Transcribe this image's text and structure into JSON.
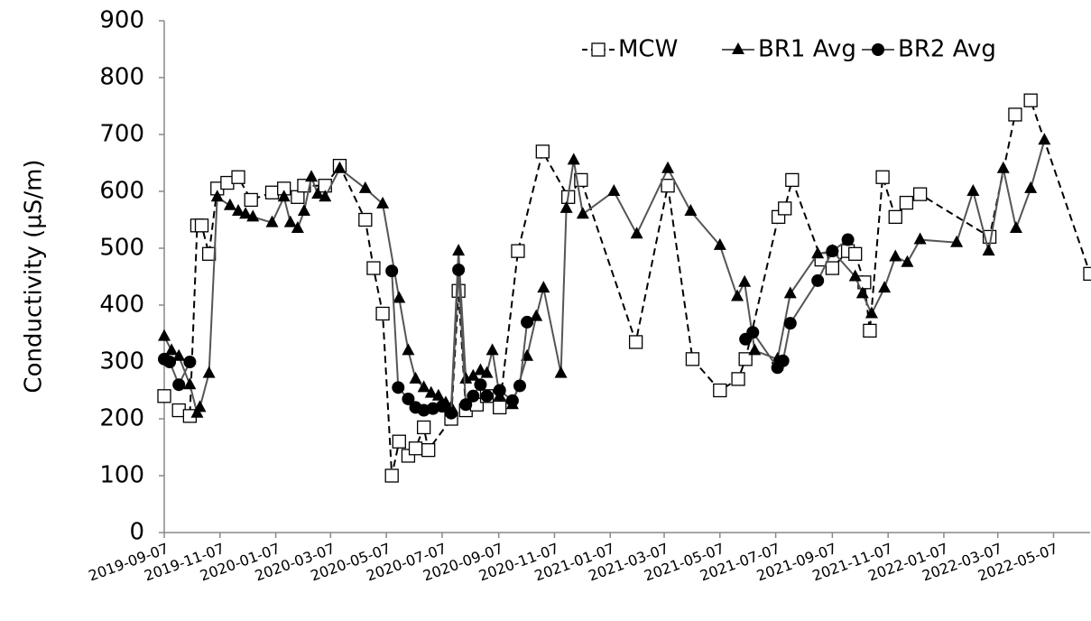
{
  "chart_data": {
    "type": "line",
    "y_label": "Conductivity (µS/m)",
    "ylim": [
      0,
      900
    ],
    "yticks": [
      0,
      100,
      200,
      300,
      400,
      500,
      600,
      700,
      800,
      900
    ],
    "xlim": [
      "2019-09-07",
      "2022-06-16"
    ],
    "xticks": [
      "2019-09-07",
      "2019-11-07",
      "2020-01-07",
      "2020-03-07",
      "2020-05-07",
      "2020-07-07",
      "2020-09-07",
      "2020-11-07",
      "2021-01-07",
      "2021-03-07",
      "2021-05-07",
      "2021-07-07",
      "2021-09-07",
      "2021-11-07",
      "2022-01-07",
      "2022-03-07",
      "2022-05-07"
    ],
    "legend": "top-right",
    "series": [
      {
        "name": "MCW",
        "color": "#000000",
        "marker": "open-square",
        "dashed": true,
        "x": [
          "2019-09-07",
          "2019-09-23",
          "2019-10-05",
          "2019-10-13",
          "2019-10-18",
          "2019-10-26",
          "2019-11-04",
          "2019-11-15",
          "2019-11-27",
          "2019-12-11",
          "2020-01-03",
          "2020-01-16",
          "2020-01-31",
          "2020-02-07",
          "2020-03-01",
          "2020-03-17",
          "2020-04-14",
          "2020-04-23",
          "2020-05-03",
          "2020-05-13",
          "2020-05-21",
          "2020-05-31",
          "2020-06-08",
          "2020-06-17",
          "2020-06-22",
          "2020-07-17",
          "2020-07-25",
          "2020-08-02",
          "2020-08-14",
          "2020-08-25",
          "2020-09-08",
          "2020-09-28",
          "2020-10-25",
          "2020-11-22",
          "2020-12-06",
          "2021-02-04",
          "2021-03-11",
          "2021-04-07",
          "2021-05-07",
          "2021-05-27",
          "2021-06-04",
          "2021-07-10",
          "2021-07-17",
          "2021-07-25",
          "2021-08-26",
          "2021-09-07",
          "2021-09-24",
          "2021-10-02",
          "2021-10-12",
          "2021-10-18",
          "2021-11-01",
          "2021-11-15",
          "2021-11-27",
          "2021-12-12",
          "2022-02-26",
          "2022-03-26",
          "2022-04-12",
          "2022-06-16"
        ],
        "values": [
          240,
          215,
          205,
          540,
          540,
          490,
          605,
          615,
          625,
          585,
          598,
          605,
          590,
          610,
          610,
          645,
          550,
          465,
          385,
          100,
          160,
          135,
          148,
          185,
          145,
          200,
          425,
          215,
          225,
          240,
          220,
          495,
          670,
          590,
          620,
          335,
          610,
          305,
          250,
          270,
          305,
          555,
          570,
          620,
          480,
          465,
          495,
          490,
          440,
          355,
          625,
          555,
          580,
          595,
          520,
          735,
          760,
          455
        ]
      },
      {
        "name": "BR1 Avg",
        "color": "#000000",
        "marker": "triangle",
        "dashed": false,
        "x": [
          "2019-09-07",
          "2019-09-15",
          "2019-09-23",
          "2019-10-05",
          "2019-10-13",
          "2019-10-16",
          "2019-10-26",
          "2019-11-04",
          "2019-11-18",
          "2019-11-27",
          "2019-12-05",
          "2019-12-13",
          "2020-01-03",
          "2020-01-16",
          "2020-01-23",
          "2020-01-31",
          "2020-02-07",
          "2020-02-15",
          "2020-02-22",
          "2020-03-01",
          "2020-03-17",
          "2020-04-14",
          "2020-05-03",
          "2020-05-21",
          "2020-05-31",
          "2020-06-08",
          "2020-06-17",
          "2020-06-25",
          "2020-07-03",
          "2020-07-11",
          "2020-07-17",
          "2020-07-25",
          "2020-08-02",
          "2020-08-10",
          "2020-08-18",
          "2020-08-25",
          "2020-08-31",
          "2020-09-08",
          "2020-09-22",
          "2020-10-08",
          "2020-10-18",
          "2020-10-26",
          "2020-11-14",
          "2020-11-20",
          "2020-11-28",
          "2020-12-08",
          "2021-01-11",
          "2021-02-05",
          "2021-03-11",
          "2021-04-05",
          "2021-05-07",
          "2021-05-26",
          "2021-06-03",
          "2021-06-14",
          "2021-07-09",
          "2021-07-23",
          "2021-08-22",
          "2021-09-07",
          "2021-10-02",
          "2021-10-10",
          "2021-10-20",
          "2021-11-03",
          "2021-11-15",
          "2021-11-28",
          "2021-12-12",
          "2022-01-21",
          "2022-02-08",
          "2022-02-25",
          "2022-03-13",
          "2022-03-27",
          "2022-04-12",
          "2022-04-27"
        ],
        "values": [
          345,
          320,
          310,
          260,
          210,
          220,
          280,
          590,
          575,
          565,
          560,
          555,
          545,
          590,
          545,
          535,
          565,
          625,
          595,
          590,
          640,
          605,
          578,
          412,
          320,
          270,
          255,
          245,
          240,
          228,
          220,
          495,
          270,
          275,
          285,
          280,
          320,
          240,
          225,
          310,
          380,
          430,
          280,
          570,
          655,
          560,
          600,
          525,
          640,
          565,
          505,
          415,
          440,
          320,
          305,
          420,
          490,
          495,
          450,
          420,
          385,
          430,
          485,
          475,
          515,
          510,
          600,
          495,
          640,
          535,
          605,
          690
        ]
      },
      {
        "name": "BR2 Avg",
        "color": "#000000",
        "marker": "circle",
        "dashed": false,
        "x": [
          "2019-09-07",
          "2019-09-13",
          "2019-09-23",
          "2019-10-05",
          "2020-01-07",
          "2020-05-13",
          "2020-05-20",
          "2020-05-31",
          "2020-06-08",
          "2020-06-17",
          "2020-06-27",
          "2020-07-07",
          "2020-07-17",
          "2020-07-25",
          "2020-08-02",
          "2020-08-10",
          "2020-08-18",
          "2020-08-25",
          "2020-09-08",
          "2020-09-22",
          "2020-09-30",
          "2020-10-08",
          "2021-01-07",
          "2021-06-04",
          "2021-06-12",
          "2021-07-09",
          "2021-07-15",
          "2021-07-23",
          "2021-08-22",
          "2021-09-07",
          "2021-09-24"
        ],
        "values": [
          305,
          300,
          260,
          300,
          null,
          460,
          255,
          235,
          220,
          215,
          218,
          222,
          210,
          462,
          225,
          240,
          260,
          240,
          250,
          232,
          258,
          370,
          null,
          340,
          352,
          290,
          302,
          368,
          443,
          495,
          515
        ]
      }
    ]
  }
}
